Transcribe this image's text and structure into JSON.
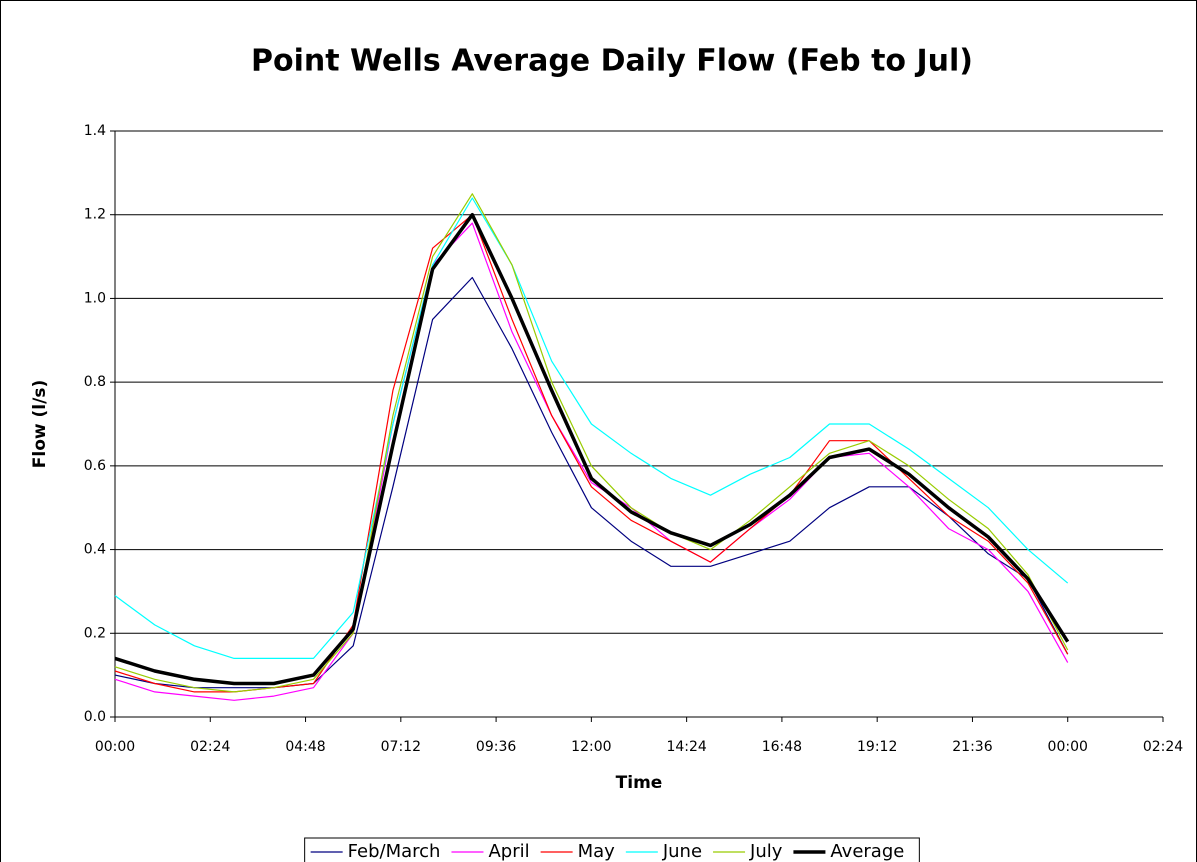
{
  "chart_data": {
    "type": "line",
    "title": "Point Wells Average  Daily Flow  (Feb to Jul)",
    "x_label": "Time",
    "y_label": "Flow  (l/s)",
    "x": [
      0,
      1,
      2,
      3,
      4,
      5,
      6,
      7,
      8,
      9,
      10,
      11,
      12,
      13,
      14,
      15,
      16,
      17,
      18,
      19,
      20,
      21,
      22,
      23,
      24
    ],
    "series": [
      {
        "name": "Feb/March",
        "color": "#000080",
        "values": [
          0.1,
          0.08,
          0.07,
          0.07,
          0.07,
          0.08,
          0.17,
          0.55,
          0.95,
          1.05,
          0.88,
          0.68,
          0.5,
          0.42,
          0.36,
          0.36,
          0.39,
          0.42,
          0.5,
          0.55,
          0.55,
          0.48,
          0.39,
          0.33,
          0.15
        ]
      },
      {
        "name": "April",
        "color": "#ff00ff",
        "values": [
          0.09,
          0.06,
          0.05,
          0.04,
          0.05,
          0.07,
          0.2,
          0.7,
          1.08,
          1.18,
          0.92,
          0.72,
          0.56,
          0.5,
          0.42,
          0.37,
          0.45,
          0.52,
          0.62,
          0.63,
          0.55,
          0.45,
          0.4,
          0.3,
          0.13
        ]
      },
      {
        "name": "May",
        "color": "#ff0000",
        "values": [
          0.11,
          0.08,
          0.06,
          0.06,
          0.07,
          0.08,
          0.22,
          0.78,
          1.12,
          1.2,
          0.95,
          0.72,
          0.55,
          0.47,
          0.42,
          0.37,
          0.45,
          0.53,
          0.66,
          0.66,
          0.57,
          0.48,
          0.42,
          0.32,
          0.15
        ]
      },
      {
        "name": "June",
        "color": "#00ffff",
        "values": [
          0.29,
          0.22,
          0.17,
          0.14,
          0.14,
          0.14,
          0.25,
          0.7,
          1.08,
          1.24,
          1.08,
          0.85,
          0.7,
          0.63,
          0.57,
          0.53,
          0.58,
          0.62,
          0.7,
          0.7,
          0.64,
          0.57,
          0.5,
          0.4,
          0.32
        ]
      },
      {
        "name": "July",
        "color": "#99cc00",
        "values": [
          0.12,
          0.09,
          0.07,
          0.06,
          0.07,
          0.09,
          0.2,
          0.72,
          1.1,
          1.25,
          1.08,
          0.8,
          0.6,
          0.5,
          0.44,
          0.4,
          0.47,
          0.55,
          0.63,
          0.66,
          0.6,
          0.52,
          0.45,
          0.34,
          0.16
        ]
      },
      {
        "name": "Average",
        "color": "#000000",
        "values": [
          0.14,
          0.11,
          0.09,
          0.08,
          0.08,
          0.1,
          0.21,
          0.65,
          1.07,
          1.2,
          1.0,
          0.78,
          0.57,
          0.49,
          0.44,
          0.41,
          0.46,
          0.53,
          0.62,
          0.64,
          0.58,
          0.5,
          0.43,
          0.33,
          0.18
        ]
      }
    ],
    "xlim": [
      0,
      26.4
    ],
    "xticks": [
      {
        "value": 0,
        "label": "00:00"
      },
      {
        "value": 2.4,
        "label": "02:24"
      },
      {
        "value": 4.8,
        "label": "04:48"
      },
      {
        "value": 7.2,
        "label": "07:12"
      },
      {
        "value": 9.6,
        "label": "09:36"
      },
      {
        "value": 12,
        "label": "12:00"
      },
      {
        "value": 14.4,
        "label": "14:24"
      },
      {
        "value": 16.8,
        "label": "16:48"
      },
      {
        "value": 19.2,
        "label": "19:12"
      },
      {
        "value": 21.6,
        "label": "21:36"
      },
      {
        "value": 24,
        "label": "00:00"
      },
      {
        "value": 26.4,
        "label": "02:24"
      }
    ],
    "ylim": [
      0,
      1.4
    ],
    "yticks": [
      {
        "value": 0,
        "label": "0.0"
      },
      0.2,
      0.4,
      0.6,
      0.8,
      {
        "value": 1,
        "label": "1.0"
      },
      1.2,
      1.4
    ],
    "grid": true,
    "legend": "bottom"
  }
}
